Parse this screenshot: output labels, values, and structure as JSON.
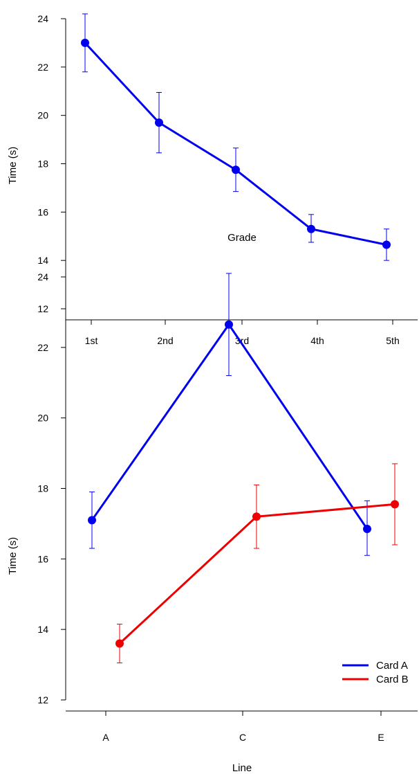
{
  "chart_data": [
    {
      "type": "line",
      "title": "",
      "xlabel": "Grade",
      "ylabel": "Time (s)",
      "categories": [
        "1st",
        "2nd",
        "3rd",
        "4th",
        "5th"
      ],
      "ylim": [
        12,
        24
      ],
      "yticks": [
        "12",
        "14",
        "16",
        "18",
        "20",
        "22",
        "24"
      ],
      "grid": false,
      "series": [
        {
          "name": "",
          "color": "#0000ee",
          "values": [
            23.0,
            19.7,
            17.75,
            15.3,
            14.65
          ],
          "err_low": [
            21.8,
            18.45,
            16.85,
            14.75,
            14.0
          ],
          "err_high": [
            24.2,
            20.95,
            18.65,
            15.9,
            15.3
          ]
        }
      ]
    },
    {
      "type": "line",
      "title": "",
      "xlabel": "Line",
      "ylabel": "Time (s)",
      "categories": [
        "A",
        "C",
        "E"
      ],
      "ylim": [
        12,
        24
      ],
      "yticks": [
        "12",
        "14",
        "16",
        "18",
        "20",
        "22",
        "24"
      ],
      "grid": false,
      "legend_position": "bottom-right",
      "series": [
        {
          "name": "Card A",
          "color": "#0000ee",
          "values": [
            17.1,
            22.65,
            16.85
          ],
          "err_low": [
            16.3,
            21.2,
            16.1
          ],
          "err_high": [
            17.9,
            24.1,
            17.65
          ]
        },
        {
          "name": "Card B",
          "color": "#ee0000",
          "values": [
            13.6,
            17.2,
            17.55
          ],
          "err_low": [
            13.05,
            16.3,
            16.4
          ],
          "err_high": [
            14.15,
            18.1,
            18.7
          ]
        }
      ]
    }
  ]
}
